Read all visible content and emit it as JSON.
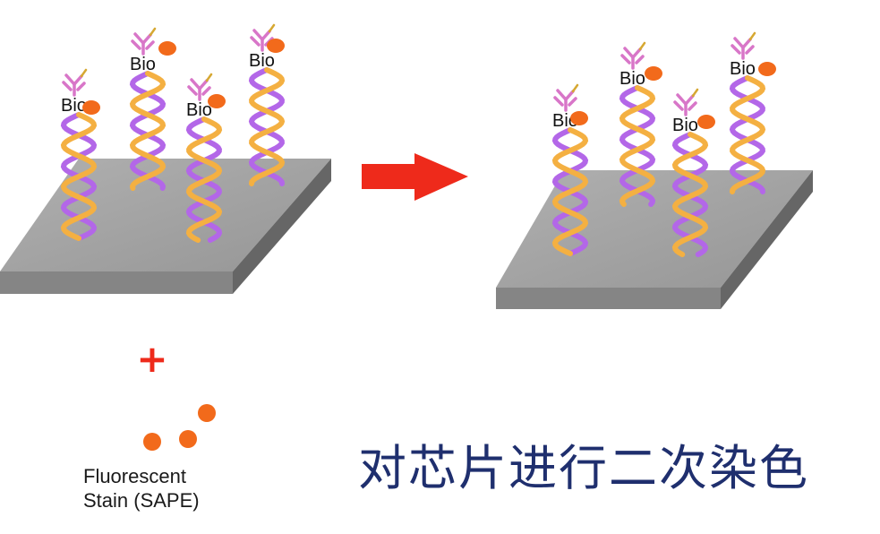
{
  "labels": {
    "bio": "Bio",
    "plus": "+",
    "stain_line1": "Fluorescent",
    "stain_line2": "Stain (SAPE)",
    "caption": "对芯片进行二次染色"
  },
  "colors": {
    "platform_top": "#a3a3a3",
    "platform_front": "#858585",
    "platform_side": "#666666",
    "strand_purple": "#b367e8",
    "strand_orange": "#f4b042",
    "antibody": "#d876c8",
    "fluor": "#f26a1b",
    "arrow": "#ee2a1b",
    "plus": "#ee2a1b",
    "caption": "#1f2f6e"
  },
  "icons": {
    "antibody": "antibody-icon",
    "fluorophore": "fluorophore-icon",
    "arrow": "right-arrow-icon"
  }
}
